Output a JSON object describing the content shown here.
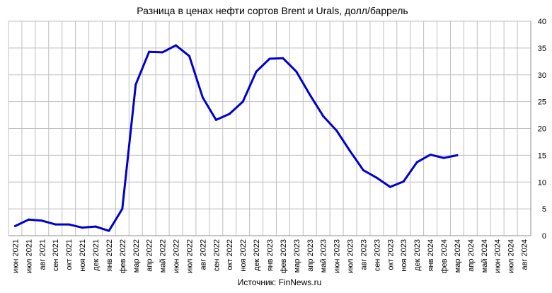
{
  "chart_data": {
    "type": "line",
    "title": "Разница в ценах нефти сортов Brent и Urals, долл/баррель",
    "source": "Источник: FinNews.ru",
    "xlabel": "",
    "ylabel": "",
    "ylim": [
      0,
      40
    ],
    "y_ticks": [
      "0",
      "5",
      "10",
      "15",
      "20",
      "25",
      "30",
      "35",
      "40"
    ],
    "y_axis_side": "right",
    "grid": true,
    "legend": "none",
    "categories": [
      "июн 2021",
      "июл 2021",
      "авг 2021",
      "сен 2021",
      "окт 2021",
      "ноя 2021",
      "дек 2021",
      "янв 2022",
      "фев 2022",
      "мар 2022",
      "апр 2022",
      "май 2022",
      "июн 2022",
      "июл 2022",
      "авг 2022",
      "сен 2022",
      "окт 2022",
      "ноя 2022",
      "дек 2022",
      "янв 2023",
      "фев 2023",
      "мар 2023",
      "апр 2023",
      "май 2023",
      "июн 2023",
      "июл 2023",
      "авг 2023",
      "сен 2023",
      "окт 2023",
      "ноя 2023",
      "дек 2023",
      "янв 2024",
      "фев 2024",
      "мар 2024",
      "апр 2024",
      "май 2024",
      "июн 2024",
      "июл 2024",
      "авг 2024"
    ],
    "series": [
      {
        "color": "#0000cc",
        "values": [
          1.8,
          3.0,
          2.8,
          2.1,
          2.1,
          1.5,
          1.7,
          0.9,
          5.0,
          28.2,
          34.3,
          34.2,
          35.5,
          33.5,
          25.8,
          21.6,
          22.7,
          25.0,
          30.6,
          33.0,
          33.1,
          30.6,
          26.3,
          22.3,
          19.6,
          15.8,
          12.2,
          10.8,
          9.1,
          10.1,
          13.7,
          15.1,
          14.5,
          15.0,
          null,
          null,
          null,
          null,
          null
        ]
      }
    ]
  }
}
